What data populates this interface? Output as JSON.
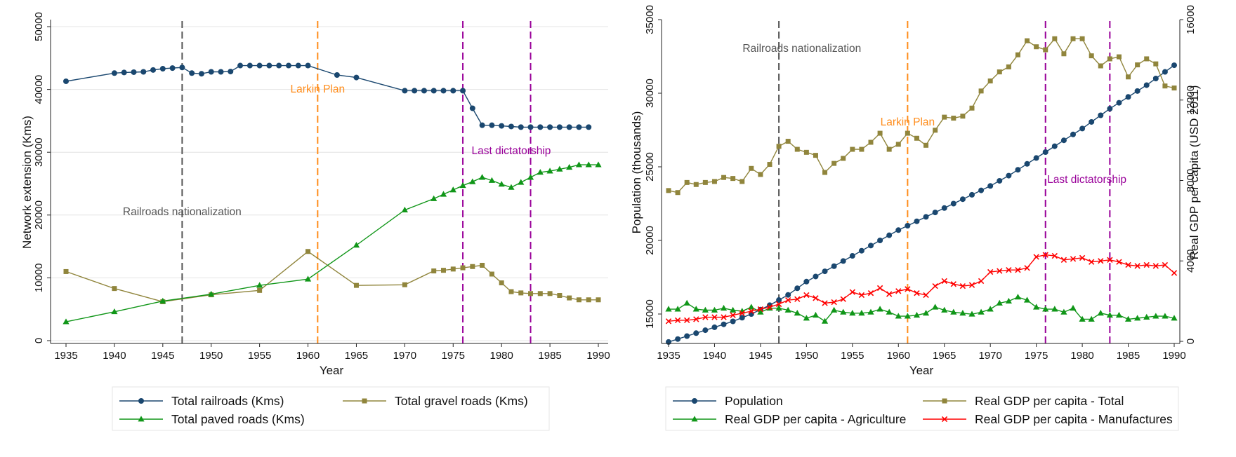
{
  "chart_data": [
    {
      "type": "line",
      "xlabel": "Year",
      "ylabel": "Network extension (Kms)",
      "xlim": [
        1935,
        1990
      ],
      "ylim": [
        0,
        50000
      ],
      "xticks": [
        "1935",
        "1940",
        "1945",
        "1950",
        "1955",
        "1960",
        "1965",
        "1970",
        "1975",
        "1980",
        "1985",
        "1990"
      ],
      "yticks": [
        "0",
        "10000",
        "20000",
        "30000",
        "40000",
        "50000"
      ],
      "grid": true,
      "legend_position": "bottom",
      "series": [
        {
          "name": "Total railroads (Kms)",
          "color": "#1a476f",
          "marker": "circle",
          "x": [
            1935,
            1940,
            1941,
            1942,
            1943,
            1944,
            1945,
            1946,
            1947,
            1948,
            1949,
            1950,
            1951,
            1952,
            1953,
            1954,
            1955,
            1956,
            1957,
            1958,
            1959,
            1960,
            1963,
            1965,
            1970,
            1971,
            1972,
            1973,
            1974,
            1975,
            1976,
            1977,
            1978,
            1979,
            1980,
            1981,
            1982,
            1983,
            1984,
            1985,
            1986,
            1987,
            1988,
            1989
          ],
          "values": [
            41300,
            42600,
            42700,
            42750,
            42800,
            43100,
            43300,
            43400,
            43500,
            42600,
            42500,
            42800,
            42800,
            42850,
            43800,
            43800,
            43800,
            43800,
            43800,
            43800,
            43800,
            43800,
            42300,
            41900,
            39800,
            39800,
            39800,
            39800,
            39800,
            39800,
            39800,
            37000,
            34300,
            34300,
            34200,
            34100,
            34000,
            34000,
            34000,
            34000,
            34000,
            34000,
            34000,
            34000
          ]
        },
        {
          "name": "Total gravel roads (Kms)",
          "color": "#90853c",
          "marker": "square",
          "x": [
            1935,
            1940,
            1945,
            1950,
            1955,
            1960,
            1965,
            1970,
            1973,
            1974,
            1975,
            1976,
            1977,
            1978,
            1979,
            1980,
            1981,
            1982,
            1983,
            1984,
            1985,
            1986,
            1987,
            1988,
            1989,
            1990
          ],
          "values": [
            11000,
            8300,
            6200,
            7300,
            8000,
            14200,
            8800,
            8900,
            11100,
            11200,
            11400,
            11600,
            11800,
            12000,
            10600,
            9200,
            7800,
            7600,
            7500,
            7500,
            7500,
            7200,
            6800,
            6500,
            6500,
            6500
          ]
        },
        {
          "name": "Total paved roads (Kms)",
          "color": "#109618",
          "marker": "triangle",
          "x": [
            1935,
            1940,
            1945,
            1950,
            1955,
            1960,
            1965,
            1970,
            1973,
            1974,
            1975,
            1976,
            1977,
            1978,
            1979,
            1980,
            1981,
            1982,
            1983,
            1984,
            1985,
            1986,
            1987,
            1988,
            1989,
            1990
          ],
          "values": [
            3000,
            4600,
            6300,
            7400,
            8800,
            9800,
            15200,
            20800,
            22600,
            23300,
            24000,
            24700,
            25300,
            26000,
            25500,
            24900,
            24400,
            25200,
            26000,
            26800,
            27000,
            27300,
            27600,
            28000,
            28000,
            28000
          ]
        }
      ],
      "vlines": [
        {
          "x": 1947,
          "color": "#555555",
          "label": "Railroads nationalization",
          "label_x": 1947,
          "label_y": 20000
        },
        {
          "x": 1961,
          "color": "#ff8c1a",
          "label": "Larkin Plan",
          "label_x": 1961,
          "label_y": 39500
        },
        {
          "x": 1976,
          "color": "#990099",
          "label": "Last dictatorship",
          "label_x": 1981,
          "label_y": 29700
        },
        {
          "x": 1983,
          "color": "#990099",
          "label": "",
          "label_x": 1983,
          "label_y": 0
        }
      ]
    },
    {
      "type": "line",
      "xlabel": "Year",
      "ylabel": "Population (thousands)",
      "y2label": "Real GDP per capita (USD 2011)",
      "xlim": [
        1935,
        1990
      ],
      "ylim": [
        13000,
        35000
      ],
      "y2lim": [
        0,
        16000
      ],
      "xticks": [
        "1935",
        "1940",
        "1945",
        "1950",
        "1955",
        "1960",
        "1965",
        "1970",
        "1975",
        "1980",
        "1985",
        "1990"
      ],
      "yticks": [
        "15000",
        "20000",
        "25000",
        "30000",
        "35000"
      ],
      "y2ticks": [
        "0",
        "4000",
        "8000",
        "12000",
        "16000"
      ],
      "grid": false,
      "legend_position": "bottom",
      "series": [
        {
          "name": "Population",
          "axis": "left",
          "color": "#1a476f",
          "marker": "circle",
          "x": [
            1935,
            1936,
            1937,
            1938,
            1939,
            1940,
            1941,
            1942,
            1943,
            1944,
            1945,
            1946,
            1947,
            1948,
            1949,
            1950,
            1951,
            1952,
            1953,
            1954,
            1955,
            1956,
            1957,
            1958,
            1959,
            1960,
            1961,
            1962,
            1963,
            1964,
            1965,
            1966,
            1967,
            1968,
            1969,
            1970,
            1971,
            1972,
            1973,
            1974,
            1975,
            1976,
            1977,
            1978,
            1979,
            1980,
            1981,
            1982,
            1983,
            1984,
            1985,
            1986,
            1987,
            1988,
            1989,
            1990
          ],
          "values": [
            13100,
            13300,
            13500,
            13700,
            13900,
            14100,
            14300,
            14500,
            14750,
            15000,
            15300,
            15600,
            15950,
            16300,
            16750,
            17200,
            17550,
            17900,
            18250,
            18600,
            18950,
            19300,
            19650,
            20000,
            20350,
            20700,
            21000,
            21300,
            21600,
            21900,
            22200,
            22500,
            22800,
            23100,
            23400,
            23700,
            24050,
            24400,
            24800,
            25200,
            25600,
            26000,
            26400,
            26800,
            27200,
            27600,
            28050,
            28500,
            28950,
            29350,
            29750,
            30150,
            30550,
            31000,
            31450,
            31900
          ]
        },
        {
          "name": "Real GDP per capita - Total",
          "axis": "right",
          "color": "#90853c",
          "marker": "square",
          "x": [
            1935,
            1936,
            1937,
            1938,
            1939,
            1940,
            1941,
            1942,
            1943,
            1944,
            1945,
            1946,
            1947,
            1948,
            1949,
            1950,
            1951,
            1952,
            1953,
            1954,
            1955,
            1956,
            1957,
            1958,
            1959,
            1960,
            1961,
            1962,
            1963,
            1964,
            1965,
            1966,
            1967,
            1968,
            1969,
            1970,
            1971,
            1972,
            1973,
            1974,
            1975,
            1976,
            1977,
            1978,
            1979,
            1980,
            1981,
            1982,
            1983,
            1984,
            1985,
            1986,
            1987,
            1988,
            1989,
            1990
          ],
          "values": [
            7500,
            7400,
            7900,
            7800,
            7900,
            7950,
            8150,
            8100,
            7950,
            8600,
            8300,
            8800,
            9700,
            9950,
            9550,
            9400,
            9250,
            8400,
            8850,
            9100,
            9550,
            9550,
            9900,
            10350,
            9550,
            9800,
            10350,
            10100,
            9750,
            10500,
            11150,
            11100,
            11200,
            11600,
            12450,
            12950,
            13400,
            13650,
            14250,
            14950,
            14650,
            14500,
            15050,
            14300,
            15050,
            15050,
            14200,
            13700,
            14050,
            14150,
            13150,
            13750,
            14050,
            13800,
            12700,
            12600
          ]
        },
        {
          "name": "Real GDP per capita - Agriculture",
          "axis": "right",
          "color": "#109618",
          "marker": "triangle",
          "x": [
            1935,
            1936,
            1937,
            1938,
            1939,
            1940,
            1941,
            1942,
            1943,
            1944,
            1945,
            1946,
            1947,
            1948,
            1949,
            1950,
            1951,
            1952,
            1953,
            1954,
            1955,
            1956,
            1957,
            1958,
            1959,
            1960,
            1961,
            1962,
            1963,
            1964,
            1965,
            1966,
            1967,
            1968,
            1969,
            1970,
            1971,
            1972,
            1973,
            1974,
            1975,
            1976,
            1977,
            1978,
            1979,
            1980,
            1981,
            1982,
            1983,
            1984,
            1985,
            1986,
            1987,
            1988,
            1989,
            1990
          ],
          "values": [
            1600,
            1600,
            1900,
            1600,
            1550,
            1550,
            1650,
            1550,
            1500,
            1700,
            1450,
            1650,
            1650,
            1550,
            1400,
            1150,
            1300,
            1000,
            1550,
            1450,
            1400,
            1400,
            1450,
            1600,
            1450,
            1250,
            1250,
            1300,
            1400,
            1700,
            1550,
            1450,
            1400,
            1350,
            1450,
            1600,
            1900,
            2000,
            2200,
            2050,
            1700,
            1600,
            1600,
            1450,
            1650,
            1100,
            1100,
            1400,
            1300,
            1300,
            1100,
            1150,
            1200,
            1250,
            1250,
            1150
          ]
        },
        {
          "name": "Real GDP per capita - Manufactures",
          "axis": "right",
          "color": "#ff0000",
          "marker": "x",
          "x": [
            1935,
            1936,
            1937,
            1938,
            1939,
            1940,
            1941,
            1942,
            1943,
            1944,
            1945,
            1946,
            1947,
            1948,
            1949,
            1950,
            1951,
            1952,
            1953,
            1954,
            1955,
            1956,
            1957,
            1958,
            1959,
            1960,
            1961,
            1962,
            1963,
            1964,
            1965,
            1966,
            1967,
            1968,
            1969,
            1970,
            1971,
            1972,
            1973,
            1974,
            1975,
            1976,
            1977,
            1978,
            1979,
            1980,
            1981,
            1982,
            1983,
            1984,
            1985,
            1986,
            1987,
            1988,
            1989,
            1990
          ],
          "values": [
            1000,
            1050,
            1050,
            1100,
            1200,
            1200,
            1200,
            1300,
            1400,
            1500,
            1600,
            1700,
            1850,
            2050,
            2100,
            2300,
            2150,
            1900,
            1950,
            2100,
            2450,
            2300,
            2400,
            2650,
            2350,
            2500,
            2600,
            2400,
            2300,
            2750,
            3000,
            2850,
            2750,
            2800,
            3000,
            3450,
            3500,
            3550,
            3550,
            3650,
            4200,
            4300,
            4250,
            4050,
            4100,
            4150,
            3950,
            4000,
            4050,
            3950,
            3800,
            3750,
            3800,
            3750,
            3800,
            3400
          ]
        }
      ],
      "vlines": [
        {
          "x": 1947,
          "color": "#555555",
          "label": "Railroads nationalization",
          "label_x": 1949.5,
          "label_y": 32800
        },
        {
          "x": 1961,
          "color": "#ff8c1a",
          "label": "Larkin Plan",
          "label_x": 1961,
          "label_y": 27800
        },
        {
          "x": 1976,
          "color": "#990099",
          "label": "Last dictatorship",
          "label_x": 1980.5,
          "label_y": 23900
        },
        {
          "x": 1983,
          "color": "#990099",
          "label": "",
          "label_x": 1983,
          "label_y": 0
        }
      ]
    }
  ]
}
